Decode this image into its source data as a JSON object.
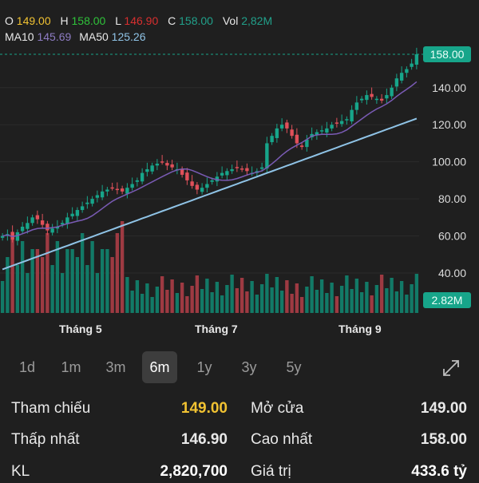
{
  "ohlc": {
    "o_label": "O",
    "o_value": "149.00",
    "h_label": "H",
    "h_value": "158.00",
    "l_label": "L",
    "l_value": "146.90",
    "c_label": "C",
    "c_value": "158.00",
    "vol_label": "Vol",
    "vol_value": "2,82M"
  },
  "ma": {
    "ma10_label": "MA10",
    "ma10_value": "145.69",
    "ma50_label": "MA50",
    "ma50_value": "125.26"
  },
  "chart_data": {
    "type": "candlestick",
    "y_ticks": [
      "158.00",
      "140.00",
      "120.00",
      "100.00",
      "80.00",
      "60.00",
      "40.00"
    ],
    "x_ticks": [
      "Tháng 5",
      "Tháng 7",
      "Tháng 9"
    ],
    "current_price_tag": "158.00",
    "volume_tag": "2.82M",
    "ylim": [
      35,
      163
    ],
    "colors": {
      "up": "#17a58a",
      "down": "#e0505a",
      "ma10": "#7a5bb5",
      "ma50": "#8fc3e6"
    },
    "close_approx": [
      60,
      61,
      58,
      62,
      65,
      67,
      70,
      69,
      66,
      63,
      64,
      65,
      67,
      70,
      72,
      74,
      76,
      78,
      80,
      82,
      84,
      85,
      86,
      85,
      84,
      86,
      88,
      90,
      94,
      96,
      98,
      99,
      100,
      98,
      97,
      96,
      93,
      90,
      87,
      85,
      86,
      88,
      90,
      92,
      94,
      95,
      96,
      97,
      96,
      95,
      94,
      95,
      97,
      110,
      114,
      118,
      120,
      118,
      114,
      110,
      108,
      112,
      115,
      116,
      117,
      118,
      120,
      121,
      122,
      123,
      128,
      132,
      134,
      136,
      135,
      134,
      133,
      136,
      140,
      145,
      148,
      150,
      153,
      158
    ]
  },
  "tabs": [
    {
      "label": "1d",
      "active": false
    },
    {
      "label": "1m",
      "active": false
    },
    {
      "label": "3m",
      "active": false
    },
    {
      "label": "6m",
      "active": true
    },
    {
      "label": "1y",
      "active": false
    },
    {
      "label": "3y",
      "active": false
    },
    {
      "label": "5y",
      "active": false
    }
  ],
  "stats": {
    "ref_label": "Tham chiếu",
    "ref_value": "149.00",
    "ref_color": "#f1c232",
    "open_label": "Mở cửa",
    "open_value": "149.00",
    "open_color": "#f1c232",
    "low_label": "Thấp nhất",
    "low_value": "146.90",
    "low_color": "#d82f2f",
    "high_label": "Cao nhất",
    "high_value": "158.00",
    "high_color": "#2fc23a",
    "vol_label": "KL",
    "vol_value": "2,820,700",
    "vol_color": "#ffffff",
    "value_label": "Giá trị",
    "value_value": "433.6 tỷ",
    "value_color": "#ffffff"
  }
}
